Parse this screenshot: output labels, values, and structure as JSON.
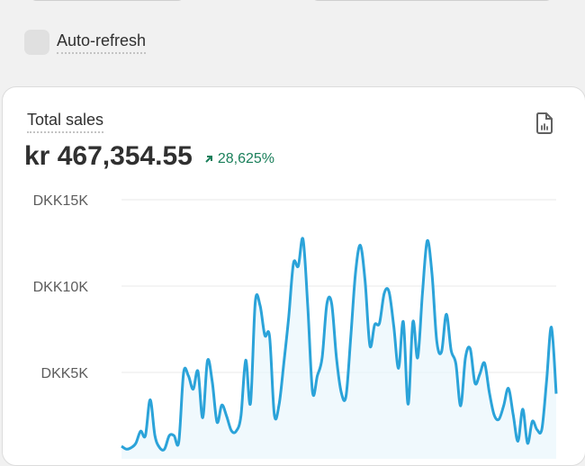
{
  "auto_refresh": {
    "label": "Auto-refresh",
    "checked": false
  },
  "card": {
    "title": "Total sales",
    "value": "kr 467,354.55",
    "delta": "28,625%",
    "delta_icon": "arrow-up-right-icon",
    "report_icon": "file-chart-icon",
    "colors": {
      "line": "#2ba3d9",
      "delta": "#1a7f5a"
    }
  },
  "chart_data": {
    "type": "area",
    "title": "",
    "xlabel": "",
    "ylabel": "",
    "y_ticks": [
      "DKK5K",
      "DKK10K",
      "DKK15K"
    ],
    "y_tick_values": [
      5000,
      10000,
      15000
    ],
    "ylim": [
      0,
      15000
    ],
    "grid": true,
    "series": [
      {
        "color": "#2ba3d9",
        "values": [
          730,
          560,
          640,
          900,
          1600,
          1340,
          3420,
          1340,
          640,
          560,
          1340,
          1340,
          990,
          4980,
          4810,
          4030,
          5070,
          2380,
          5680,
          4460,
          2120,
          3110,
          2470,
          1630,
          1600,
          2470,
          5710,
          3210,
          9060,
          8890,
          7150,
          7070,
          2550,
          3160,
          5590,
          8190,
          11320,
          11150,
          12710,
          8800,
          3850,
          4810,
          5850,
          8980,
          8980,
          5850,
          3850,
          3630,
          7070,
          10800,
          12360,
          10280,
          6550,
          7760,
          7850,
          9580,
          9670,
          7670,
          5240,
          7930,
          3160,
          7930,
          5850,
          9580,
          12620,
          10710,
          6810,
          6200,
          8370,
          6290,
          5500,
          3070,
          5850,
          6370,
          4380,
          4900,
          5540,
          3850,
          2550,
          2290,
          3070,
          4080,
          2550,
          1020,
          2870,
          900,
          2170,
          1680,
          1720,
          4550,
          7620,
          3770
        ]
      }
    ]
  }
}
